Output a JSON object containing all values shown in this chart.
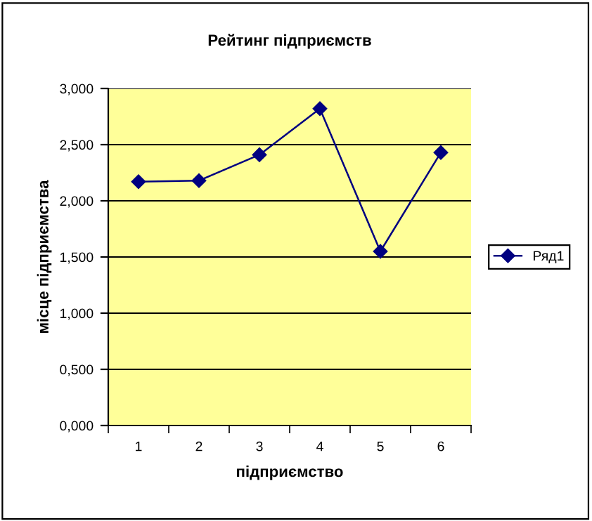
{
  "chart_data": {
    "type": "line",
    "title": "Рейтинг підприємств",
    "xlabel": "підприємство",
    "ylabel": "місце підприємства",
    "categories": [
      "1",
      "2",
      "3",
      "4",
      "5",
      "6"
    ],
    "series": [
      {
        "name": "Ряд1",
        "color": "#000080",
        "values": [
          2.17,
          2.18,
          2.41,
          2.82,
          1.55,
          2.43
        ]
      }
    ],
    "ylim": [
      0,
      3
    ],
    "yticks": [
      {
        "value": 0,
        "label": "0,000"
      },
      {
        "value": 0.5,
        "label": "0,500"
      },
      {
        "value": 1,
        "label": "1,000"
      },
      {
        "value": 1.5,
        "label": "1,500"
      },
      {
        "value": 2,
        "label": "2,000"
      },
      {
        "value": 2.5,
        "label": "2,500"
      },
      {
        "value": 3,
        "label": "3,000"
      }
    ],
    "grid": "y",
    "legend": "right",
    "marker": "diamond",
    "line_style": "solid"
  }
}
